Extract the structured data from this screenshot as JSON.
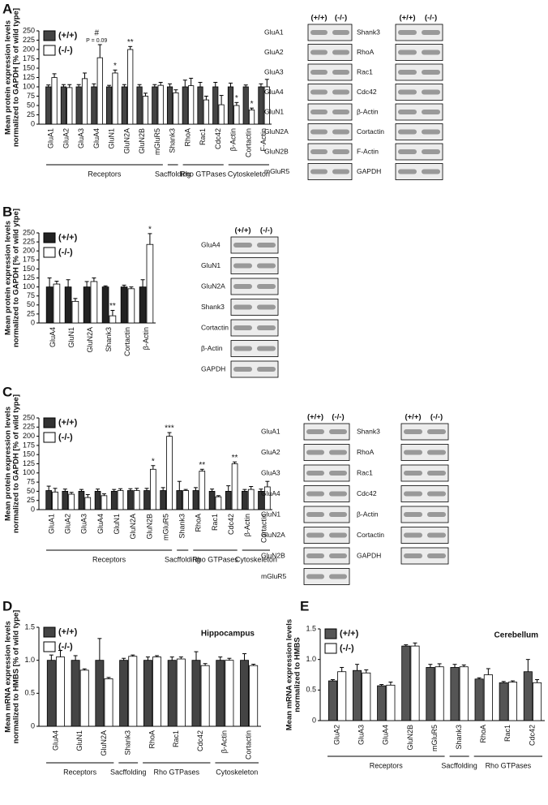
{
  "panel_labels": [
    "A",
    "B",
    "C",
    "D",
    "E"
  ],
  "chart_data": [
    {
      "type": "bar",
      "ylabel": [
        "Mean protein expression levels",
        "normalized to GAPDH [% of wild type]"
      ],
      "groups": [
        {
          "label": "Receptors",
          "categories": [
            "GluA1",
            "GluA2",
            "GluA3",
            "GluA4",
            "GluN1",
            "GluN2A",
            "GluN2B",
            "mGluR5"
          ]
        },
        {
          "label": "Sacffolding",
          "categories": [
            "Shank3"
          ]
        },
        {
          "label": "Rho GTPases",
          "categories": [
            "RhoA",
            "Rac1",
            "Cdc42"
          ]
        },
        {
          "label": "Cytoskeleton",
          "categories": [
            "β-Actin",
            "Cortactin",
            "F-Actin"
          ]
        }
      ],
      "series": [
        {
          "name": "(+/+)",
          "color": "#444444",
          "values": [
            100,
            100,
            100,
            100,
            100,
            100,
            100,
            100,
            100,
            100,
            100,
            100,
            100,
            100,
            100
          ],
          "errors": [
            5,
            6,
            6,
            8,
            4,
            6,
            6,
            6,
            8,
            18,
            12,
            12,
            10,
            5,
            8
          ]
        },
        {
          "name": "(-/-)",
          "color": "#ffffff",
          "values": [
            125,
            98,
            122,
            178,
            137,
            200,
            75,
            104,
            84,
            103,
            65,
            52,
            50,
            38,
            100
          ],
          "errors": [
            10,
            8,
            15,
            35,
            8,
            8,
            8,
            8,
            8,
            20,
            10,
            25,
            8,
            5,
            20
          ],
          "significance": [
            null,
            null,
            null,
            [
              "#",
              "P = 0.09"
            ],
            [
              "*"
            ],
            [
              "**"
            ],
            null,
            null,
            null,
            null,
            null,
            null,
            [
              "*"
            ],
            [
              "*"
            ],
            null
          ]
        }
      ],
      "ylim": [
        0,
        250
      ],
      "yticks": [
        0,
        25,
        50,
        75,
        100,
        125,
        150,
        175,
        200,
        225,
        250
      ]
    },
    {
      "type": "bar",
      "ylabel": [
        "Mean protein expression levels",
        "normalized to GAPDH [% of wild ytpe]"
      ],
      "categories": [
        "GluA4",
        "GluN1",
        "GluN2A",
        "Shank3",
        "Cortactin",
        "β-Actin"
      ],
      "series": [
        {
          "name": "(+/+)",
          "color": "#222222",
          "values": [
            100,
            100,
            100,
            100,
            100,
            100
          ],
          "errors": [
            25,
            20,
            15,
            3,
            5,
            20
          ]
        },
        {
          "name": "(-/-)",
          "color": "#ffffff",
          "values": [
            108,
            60,
            115,
            20,
            95,
            218
          ],
          "errors": [
            8,
            8,
            10,
            15,
            5,
            30
          ],
          "significance": [
            null,
            null,
            null,
            [
              "**"
            ],
            null,
            [
              "*"
            ]
          ]
        }
      ],
      "ylim": [
        0,
        250
      ],
      "yticks": [
        0,
        25,
        50,
        75,
        100,
        125,
        150,
        175,
        200,
        225,
        250
      ]
    },
    {
      "type": "bar",
      "ylabel": [
        "Mean protein expression levels",
        "normalized to GAPDH [% of wild type]"
      ],
      "groups": [
        {
          "label": "Receptors",
          "categories": [
            "GluA1",
            "GluA2",
            "GluA3",
            "GluA4",
            "GluN1",
            "GluN2A",
            "GluN2B",
            "mGluR5"
          ]
        },
        {
          "label": "Sacffolding",
          "categories": [
            "Shank3"
          ]
        },
        {
          "label": "Rho GTPases",
          "categories": [
            "RhoA",
            "Rac1",
            "Cdc42"
          ]
        },
        {
          "label": "Cytoskeleton",
          "categories": [
            "β-Actin",
            "Cortactin"
          ]
        }
      ],
      "series": [
        {
          "name": "(+/+)",
          "color": "#333333",
          "values": [
            52,
            50,
            50,
            50,
            50,
            52,
            52,
            52,
            52,
            52,
            50,
            50,
            50,
            50
          ],
          "errors": [
            12,
            6,
            5,
            6,
            5,
            5,
            6,
            8,
            25,
            8,
            6,
            15,
            5,
            6
          ]
        },
        {
          "name": "(-/-)",
          "color": "#ffffff",
          "values": [
            48,
            42,
            33,
            38,
            52,
            52,
            110,
            200,
            52,
            105,
            35,
            125,
            55,
            62
          ],
          "errors": [
            10,
            5,
            8,
            5,
            5,
            6,
            10,
            10,
            3,
            5,
            3,
            5,
            8,
            15
          ],
          "significance": [
            null,
            null,
            null,
            null,
            null,
            null,
            [
              "*"
            ],
            [
              "***"
            ],
            null,
            [
              "**"
            ],
            null,
            [
              "**"
            ],
            null,
            null
          ]
        }
      ],
      "ylim": [
        0,
        250
      ],
      "yticks": [
        0,
        25,
        50,
        75,
        100,
        125,
        150,
        175,
        200,
        225,
        250
      ]
    },
    {
      "type": "bar",
      "title": "Hippocampus",
      "ylabel": [
        "Mean mRNA expression levels",
        "normalized to HMBS [% of wild type]"
      ],
      "groups": [
        {
          "label": "Receptors",
          "categories": [
            "GluA4",
            "GluN1",
            "GluN2A"
          ]
        },
        {
          "label": "Sacffolding",
          "categories": [
            "Shank3"
          ]
        },
        {
          "label": "Rho GTPases",
          "categories": [
            "RhoA",
            "Rac1",
            "Cdc42"
          ]
        },
        {
          "label": "Cytoskeleton",
          "categories": [
            "β-Actin",
            "Cortactin"
          ]
        }
      ],
      "series": [
        {
          "name": "(+/+)",
          "color": "#444444",
          "values": [
            1.0,
            1.0,
            1.0,
            1.0,
            1.0,
            1.0,
            1.0,
            1.0,
            1.0
          ],
          "errors": [
            0.08,
            0.07,
            0.33,
            0.03,
            0.05,
            0.05,
            0.13,
            0.05,
            0.1
          ]
        },
        {
          "name": "(-/-)",
          "color": "#ffffff",
          "values": [
            1.05,
            0.85,
            0.72,
            1.06,
            1.05,
            1.02,
            0.92,
            1.0,
            0.92
          ],
          "errors": [
            0.1,
            0.02,
            0.02,
            0.02,
            0.02,
            0.03,
            0.03,
            0.03,
            0.02
          ]
        }
      ],
      "ylim": [
        0,
        1.5
      ],
      "yticks": [
        0,
        0.5,
        {
          "value": 1,
          "label": "1.0"
        },
        1.5
      ]
    },
    {
      "type": "bar",
      "title": "Cerebellum",
      "ylabel": [
        "Mean mRNA expression levels",
        "normalized to HMBS"
      ],
      "groups": [
        {
          "label": "Receptors",
          "categories": [
            "GluA2",
            "GluA3",
            "GluA4",
            "GluN2B",
            "mGluR5"
          ]
        },
        {
          "label": "Sacffolding",
          "categories": [
            "Shank3"
          ]
        },
        {
          "label": "Rho GTPases",
          "categories": [
            "RhoA",
            "Rac1",
            "Cdc42"
          ]
        }
      ],
      "series": [
        {
          "name": "(+/+)",
          "color": "#555555",
          "values": [
            0.65,
            0.82,
            0.57,
            1.22,
            0.87,
            0.87,
            0.68,
            0.62,
            0.8
          ],
          "errors": [
            0.02,
            0.1,
            0.02,
            0.02,
            0.05,
            0.05,
            0.02,
            0.02,
            0.2
          ]
        },
        {
          "name": "(-/-)",
          "color": "#ffffff",
          "values": [
            0.8,
            0.78,
            0.58,
            1.22,
            0.88,
            0.88,
            0.75,
            0.63,
            0.62
          ],
          "errors": [
            0.07,
            0.05,
            0.05,
            0.05,
            0.05,
            0.03,
            0.1,
            0.02,
            0.05
          ]
        }
      ],
      "ylim": [
        0,
        1.5
      ],
      "yticks": [
        0,
        0.5,
        {
          "value": 1,
          "label": "1.0"
        },
        1.5
      ]
    }
  ],
  "blots": [
    {
      "columns": [
        "(+/+)",
        "(-/-)"
      ],
      "proteins": [
        "GluA1",
        "GluA2",
        "GluA3",
        "GluA4",
        "GluN1",
        "GluN2A",
        "GluN2B",
        "mGluR5"
      ]
    },
    {
      "columns": [
        "(+/+)",
        "(-/-)"
      ],
      "proteins": [
        "Shank3",
        "RhoA",
        "Rac1",
        "Cdc42",
        "β-Actin",
        "Cortactin",
        "F-Actin",
        "GAPDH"
      ]
    },
    {
      "columns": [
        "(+/+)",
        "(-/-)"
      ],
      "proteins": [
        "GluA4",
        "GluN1",
        "GluN2A",
        "Shank3",
        "Cortactin",
        "β-Actin",
        "GAPDH"
      ]
    },
    {
      "columns": [
        "(+/+)",
        "(-/-)"
      ],
      "proteins": [
        "GluA1",
        "GluA2",
        "GluA3",
        "GluA4",
        "GluN1",
        "GluN2A",
        "GluN2B",
        "mGluR5"
      ]
    },
    {
      "columns": [
        "(+/+)",
        "(-/-)"
      ],
      "proteins": [
        "Shank3",
        "RhoA",
        "Rac1",
        "Cdc42",
        "β-Actin",
        "Cortactin",
        "GAPDH"
      ]
    }
  ]
}
